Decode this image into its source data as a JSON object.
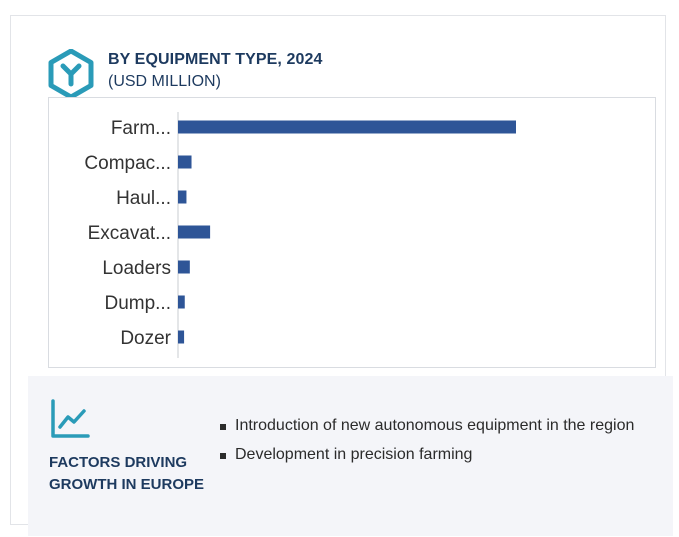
{
  "header": {
    "title": "BY EQUIPMENT TYPE, 2024",
    "subtitle": "(USD MILLION)",
    "logo_icon": "hexagon-y-logo-icon"
  },
  "colors": {
    "bar": "#2e5597",
    "title": "#1d3a5f",
    "accent": "#2a9bb8"
  },
  "chart_data": {
    "type": "bar",
    "orientation": "horizontal",
    "categories": [
      "Farm...",
      "Compac...",
      "Haul...",
      "Excavat...",
      "Loaders",
      "Dump...",
      "Dozer"
    ],
    "values": [
      100,
      4,
      2.5,
      9.5,
      3.5,
      2,
      1.8
    ],
    "title": "BY EQUIPMENT TYPE, 2024",
    "subtitle": "(USD MILLION)",
    "xlabel": "",
    "ylabel": "",
    "grid": false
  },
  "factors": {
    "icon": "trend-line-chart-icon",
    "title": "FACTORS DRIVING GROWTH IN EUROPE",
    "items": [
      "Introduction of new autonomous equipment in the region",
      "Development in precision farming"
    ]
  }
}
